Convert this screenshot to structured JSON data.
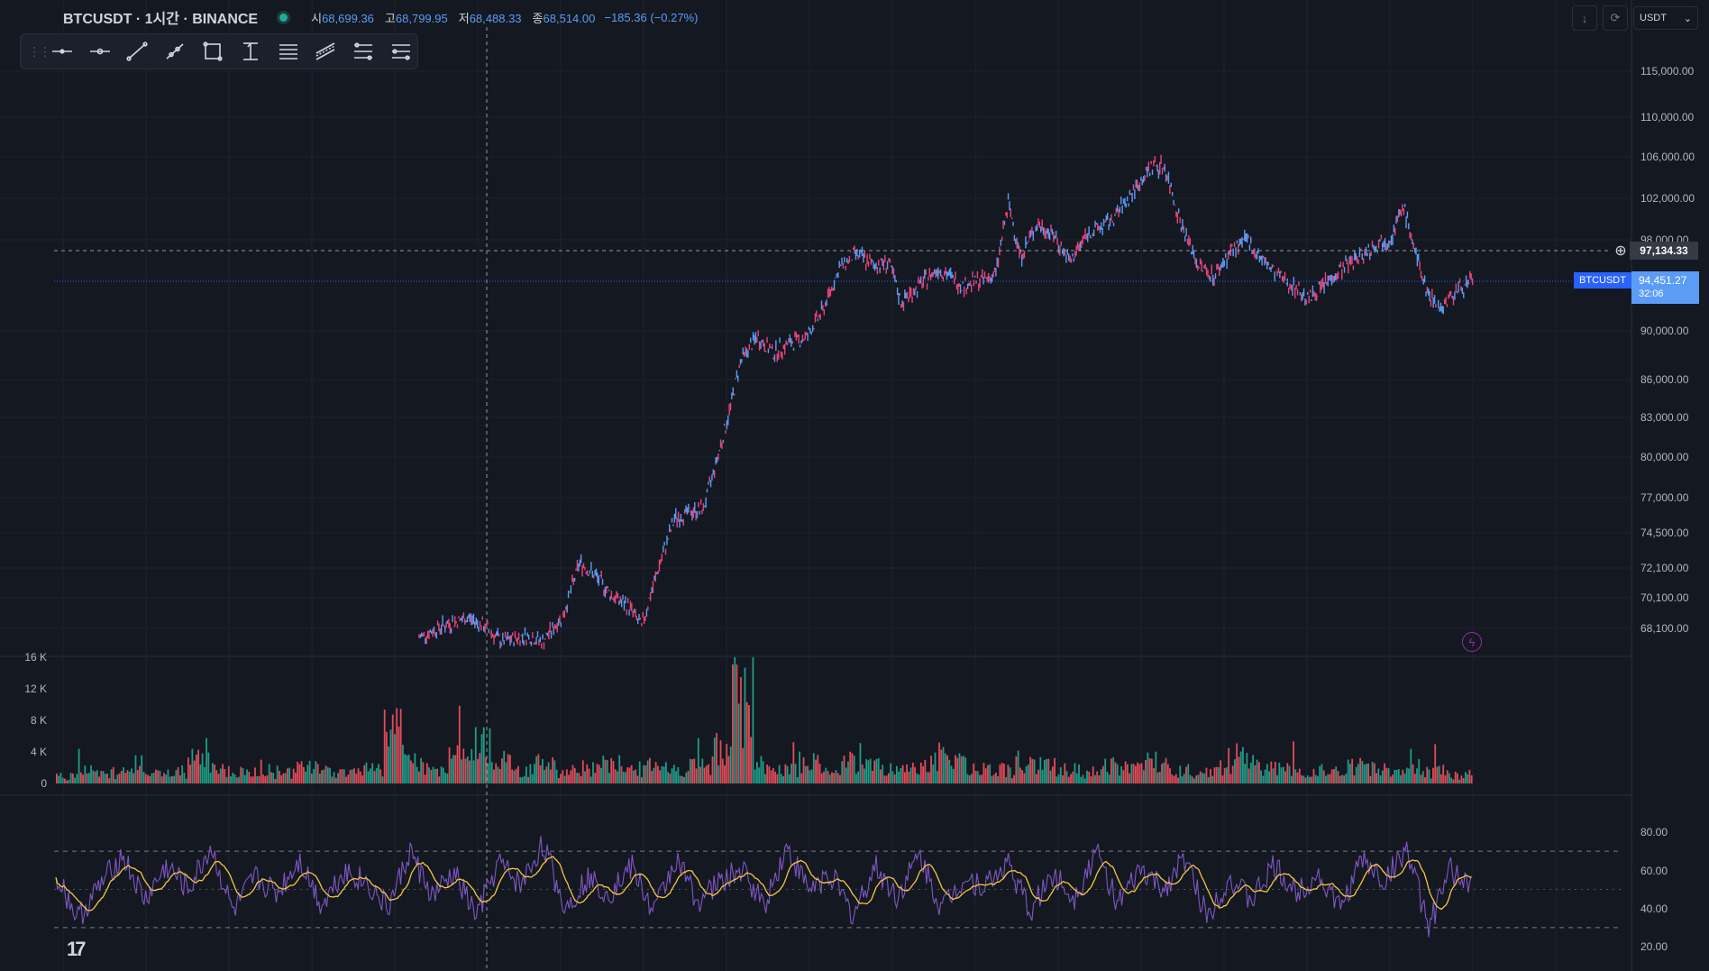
{
  "header": {
    "symbol_title": "BTCUSDT · 1시간 · BINANCE",
    "open_label": "시",
    "open_value": "68,699.36",
    "high_label": "고",
    "high_value": "68,799.95",
    "low_label": "저",
    "low_value": "68,488.33",
    "close_label": "종",
    "close_value": "68,514.00",
    "change": "−185.36 (−0.27%)"
  },
  "toolbar": {
    "tools": [
      "horizontal-line-icon",
      "horizontal-ray-icon",
      "trend-line-icon",
      "ray-line-icon",
      "rectangle-icon",
      "price-range-icon",
      "parallel-channel-icon",
      "pitchfork-icon",
      "fib-retracement-icon",
      "fib-extension-icon"
    ]
  },
  "top_right": {
    "currency": "USDT"
  },
  "price_axis": {
    "labels": [
      "115,000.00",
      "110,000.00",
      "106,000.00",
      "102,000.00",
      "98,000.00",
      "90,000.00",
      "86,000.00",
      "83,000.00",
      "80,000.00",
      "77,000.00",
      "74,500.00",
      "72,100.00",
      "70,100.00",
      "68,100.00"
    ]
  },
  "crosshair_price": "97,134.33",
  "current_price": {
    "symbol": "BTCUSDT",
    "price": "94,451.27",
    "countdown": "32:06"
  },
  "volume_axis": {
    "labels": [
      "16 K",
      "12 K",
      "8 K",
      "4 K",
      "0"
    ]
  },
  "rsi_axis": {
    "labels": [
      "80.00",
      "60.00",
      "40.00",
      "20.00"
    ]
  },
  "colors": {
    "background": "#141821",
    "up": "#5b9cf6",
    "down": "#e8447a",
    "volume_up": "#22ab94",
    "volume_down": "#f7525f",
    "rsi": "#7e57c2",
    "rsi_ma": "#f5c542"
  },
  "chart_data": {
    "type": "line",
    "title": "BTCUSDT · 1시간 · BINANCE",
    "ylim": [
      66000,
      117000
    ],
    "price_series": [
      [
        0,
        67500
      ],
      [
        30,
        68300
      ],
      [
        60,
        68800
      ],
      [
        80,
        68200
      ],
      [
        100,
        67200
      ],
      [
        130,
        67600
      ],
      [
        150,
        67200
      ],
      [
        175,
        69000
      ],
      [
        195,
        72500
      ],
      [
        215,
        71500
      ],
      [
        235,
        70200
      ],
      [
        255,
        69500
      ],
      [
        270,
        68200
      ],
      [
        290,
        72000
      ],
      [
        310,
        75500
      ],
      [
        330,
        76000
      ],
      [
        345,
        76200
      ],
      [
        360,
        79500
      ],
      [
        375,
        83000
      ],
      [
        390,
        87500
      ],
      [
        410,
        89500
      ],
      [
        430,
        88200
      ],
      [
        450,
        89000
      ],
      [
        470,
        89500
      ],
      [
        490,
        91800
      ],
      [
        510,
        95500
      ],
      [
        530,
        96800
      ],
      [
        550,
        95800
      ],
      [
        570,
        96000
      ],
      [
        585,
        92500
      ],
      [
        600,
        93500
      ],
      [
        630,
        95500
      ],
      [
        660,
        94000
      ],
      [
        685,
        94500
      ],
      [
        700,
        95000
      ],
      [
        715,
        101500
      ],
      [
        730,
        96500
      ],
      [
        750,
        99500
      ],
      [
        770,
        98500
      ],
      [
        790,
        96000
      ],
      [
        810,
        98500
      ],
      [
        840,
        99800
      ],
      [
        870,
        103000
      ],
      [
        890,
        105200
      ],
      [
        905,
        105000
      ],
      [
        925,
        99500
      ],
      [
        945,
        95800
      ],
      [
        965,
        94800
      ],
      [
        985,
        97000
      ],
      [
        1005,
        98000
      ],
      [
        1020,
        96500
      ],
      [
        1040,
        95000
      ],
      [
        1060,
        94000
      ],
      [
        1080,
        92800
      ],
      [
        1100,
        94200
      ],
      [
        1120,
        95500
      ],
      [
        1140,
        96500
      ],
      [
        1160,
        97500
      ],
      [
        1180,
        98300
      ],
      [
        1195,
        101200
      ],
      [
        1210,
        96500
      ],
      [
        1225,
        93200
      ],
      [
        1240,
        92000
      ],
      [
        1260,
        93600
      ],
      [
        1280,
        94400
      ]
    ],
    "volume_series": [
      1200,
      2500,
      1800,
      3000,
      1500,
      2000,
      4500,
      2200,
      1800,
      2600,
      1900,
      3400,
      2100,
      1700,
      2400,
      8000,
      3200,
      2600,
      4500,
      6000,
      3800,
      2500,
      3100,
      2200,
      2600,
      4000,
      2400,
      3100,
      2000,
      2800,
      5500,
      14500,
      3000,
      2500,
      3400,
      2200,
      3600,
      2800,
      2300,
      2500,
      4500,
      3000,
      2600,
      2200,
      3700,
      2800,
      2200,
      1800,
      3000,
      2500,
      3400,
      2100,
      1900,
      2600,
      4800,
      3000,
      2400,
      1900,
      2200,
      2700,
      2300,
      1800,
      2600,
      2100,
      1500
    ],
    "rsi_series": [
      58,
      35,
      52,
      68,
      44,
      62,
      50,
      72,
      38,
      56,
      48,
      66,
      42,
      60,
      54,
      40,
      70,
      46,
      58,
      36,
      64,
      52,
      74,
      40,
      56,
      48,
      62,
      38,
      66,
      44,
      54,
      60,
      42,
      72,
      50,
      58,
      36,
      62,
      46,
      68,
      40,
      56,
      52,
      64,
      38,
      58,
      46,
      70,
      42,
      60,
      50,
      66,
      36,
      56,
      44,
      62,
      48,
      58,
      40,
      66,
      54,
      72,
      30,
      60,
      52
    ],
    "rsi_ylim": [
      15,
      90
    ]
  }
}
